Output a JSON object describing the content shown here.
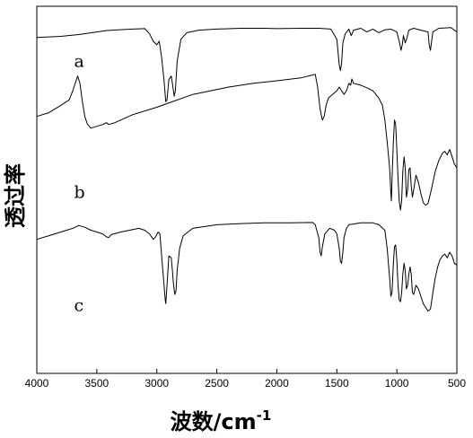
{
  "chart_data": {
    "type": "line",
    "title": "",
    "xlabel": "波数/cm",
    "xlabel_superscript": "-1",
    "ylabel": "透过率",
    "xlim": [
      4000,
      500
    ],
    "x_reversed": true,
    "y_ticks_shown": false,
    "grid": false,
    "x_ticks": [
      4000,
      3500,
      3000,
      2500,
      2000,
      1500,
      1000,
      500
    ],
    "x_tick_labels": [
      "4000",
      "3500",
      "3000",
      "2500",
      "2000",
      "1500",
      "1000",
      "500"
    ],
    "series_labels": [
      "a",
      "b",
      "c"
    ],
    "series": [
      {
        "name": "a",
        "points": [
          [
            4000,
            0.915
          ],
          [
            3800,
            0.918
          ],
          [
            3650,
            0.923
          ],
          [
            3500,
            0.93
          ],
          [
            3420,
            0.934
          ],
          [
            3200,
            0.938
          ],
          [
            3100,
            0.939
          ],
          [
            3060,
            0.925
          ],
          [
            3030,
            0.905
          ],
          [
            3000,
            0.895
          ],
          [
            2980,
            0.905
          ],
          [
            2960,
            0.86
          ],
          [
            2940,
            0.8
          ],
          [
            2925,
            0.74
          ],
          [
            2915,
            0.745
          ],
          [
            2900,
            0.8
          ],
          [
            2880,
            0.81
          ],
          [
            2870,
            0.79
          ],
          [
            2855,
            0.755
          ],
          [
            2845,
            0.77
          ],
          [
            2830,
            0.85
          ],
          [
            2800,
            0.91
          ],
          [
            2750,
            0.928
          ],
          [
            2650,
            0.935
          ],
          [
            2500,
            0.938
          ],
          [
            2300,
            0.94
          ],
          [
            2100,
            0.94
          ],
          [
            2000,
            0.939
          ],
          [
            1800,
            0.94
          ],
          [
            1650,
            0.94
          ],
          [
            1550,
            0.938
          ],
          [
            1500,
            0.91
          ],
          [
            1480,
            0.84
          ],
          [
            1470,
            0.825
          ],
          [
            1460,
            0.845
          ],
          [
            1450,
            0.9
          ],
          [
            1430,
            0.925
          ],
          [
            1400,
            0.938
          ],
          [
            1380,
            0.92
          ],
          [
            1360,
            0.935
          ],
          [
            1300,
            0.94
          ],
          [
            1250,
            0.93
          ],
          [
            1200,
            0.938
          ],
          [
            1150,
            0.928
          ],
          [
            1100,
            0.936
          ],
          [
            1050,
            0.938
          ],
          [
            1000,
            0.93
          ],
          [
            980,
            0.905
          ],
          [
            965,
            0.88
          ],
          [
            955,
            0.895
          ],
          [
            945,
            0.92
          ],
          [
            930,
            0.9
          ],
          [
            915,
            0.915
          ],
          [
            900,
            0.935
          ],
          [
            860,
            0.94
          ],
          [
            800,
            0.935
          ],
          [
            740,
            0.93
          ],
          [
            730,
            0.895
          ],
          [
            720,
            0.88
          ],
          [
            710,
            0.905
          ],
          [
            700,
            0.93
          ],
          [
            650,
            0.94
          ],
          [
            550,
            0.942
          ],
          [
            500,
            0.93
          ]
        ]
      },
      {
        "name": "b",
        "points": [
          [
            4000,
            0.7
          ],
          [
            3900,
            0.71
          ],
          [
            3800,
            0.73
          ],
          [
            3730,
            0.745
          ],
          [
            3700,
            0.77
          ],
          [
            3660,
            0.81
          ],
          [
            3640,
            0.79
          ],
          [
            3620,
            0.74
          ],
          [
            3600,
            0.7
          ],
          [
            3580,
            0.68
          ],
          [
            3550,
            0.668
          ],
          [
            3500,
            0.673
          ],
          [
            3450,
            0.678
          ],
          [
            3420,
            0.683
          ],
          [
            3400,
            0.678
          ],
          [
            3350,
            0.683
          ],
          [
            3200,
            0.705
          ],
          [
            3000,
            0.725
          ],
          [
            2700,
            0.76
          ],
          [
            2400,
            0.78
          ],
          [
            2200,
            0.79
          ],
          [
            2000,
            0.797
          ],
          [
            1800,
            0.805
          ],
          [
            1700,
            0.813
          ],
          [
            1680,
            0.815
          ],
          [
            1660,
            0.78
          ],
          [
            1640,
            0.72
          ],
          [
            1620,
            0.69
          ],
          [
            1605,
            0.7
          ],
          [
            1590,
            0.73
          ],
          [
            1570,
            0.75
          ],
          [
            1500,
            0.77
          ],
          [
            1480,
            0.78
          ],
          [
            1460,
            0.77
          ],
          [
            1440,
            0.76
          ],
          [
            1420,
            0.77
          ],
          [
            1400,
            0.79
          ],
          [
            1385,
            0.785
          ],
          [
            1375,
            0.802
          ],
          [
            1360,
            0.79
          ],
          [
            1300,
            0.785
          ],
          [
            1250,
            0.778
          ],
          [
            1200,
            0.77
          ],
          [
            1150,
            0.75
          ],
          [
            1120,
            0.73
          ],
          [
            1100,
            0.69
          ],
          [
            1080,
            0.63
          ],
          [
            1060,
            0.56
          ],
          [
            1050,
            0.49
          ],
          [
            1045,
            0.47
          ],
          [
            1040,
            0.53
          ],
          [
            1030,
            0.62
          ],
          [
            1020,
            0.69
          ],
          [
            1010,
            0.68
          ],
          [
            1000,
            0.61
          ],
          [
            990,
            0.53
          ],
          [
            980,
            0.47
          ],
          [
            970,
            0.445
          ],
          [
            960,
            0.47
          ],
          [
            950,
            0.55
          ],
          [
            940,
            0.59
          ],
          [
            930,
            0.56
          ],
          [
            920,
            0.48
          ],
          [
            910,
            0.5
          ],
          [
            900,
            0.555
          ],
          [
            890,
            0.56
          ],
          [
            880,
            0.51
          ],
          [
            870,
            0.48
          ],
          [
            860,
            0.5
          ],
          [
            840,
            0.54
          ],
          [
            820,
            0.52
          ],
          [
            800,
            0.49
          ],
          [
            780,
            0.465
          ],
          [
            760,
            0.458
          ],
          [
            740,
            0.463
          ],
          [
            720,
            0.49
          ],
          [
            700,
            0.52
          ],
          [
            680,
            0.55
          ],
          [
            650,
            0.58
          ],
          [
            620,
            0.6
          ],
          [
            600,
            0.605
          ],
          [
            580,
            0.595
          ],
          [
            560,
            0.61
          ],
          [
            540,
            0.59
          ],
          [
            520,
            0.57
          ],
          [
            500,
            0.56
          ]
        ]
      },
      {
        "name": "c",
        "points": [
          [
            4000,
            0.365
          ],
          [
            3900,
            0.375
          ],
          [
            3800,
            0.385
          ],
          [
            3700,
            0.395
          ],
          [
            3650,
            0.403
          ],
          [
            3600,
            0.398
          ],
          [
            3550,
            0.39
          ],
          [
            3500,
            0.385
          ],
          [
            3450,
            0.38
          ],
          [
            3420,
            0.372
          ],
          [
            3400,
            0.37
          ],
          [
            3380,
            0.378
          ],
          [
            3300,
            0.385
          ],
          [
            3200,
            0.392
          ],
          [
            3150,
            0.395
          ],
          [
            3100,
            0.39
          ],
          [
            3060,
            0.38
          ],
          [
            3030,
            0.365
          ],
          [
            3010,
            0.372
          ],
          [
            2990,
            0.385
          ],
          [
            2975,
            0.38
          ],
          [
            2960,
            0.32
          ],
          [
            2945,
            0.26
          ],
          [
            2930,
            0.2
          ],
          [
            2925,
            0.19
          ],
          [
            2915,
            0.24
          ],
          [
            2900,
            0.32
          ],
          [
            2880,
            0.315
          ],
          [
            2870,
            0.28
          ],
          [
            2860,
            0.24
          ],
          [
            2850,
            0.215
          ],
          [
            2840,
            0.225
          ],
          [
            2830,
            0.28
          ],
          [
            2810,
            0.34
          ],
          [
            2780,
            0.375
          ],
          [
            2700,
            0.395
          ],
          [
            2500,
            0.405
          ],
          [
            2300,
            0.408
          ],
          [
            2100,
            0.41
          ],
          [
            1900,
            0.41
          ],
          [
            1700,
            0.411
          ],
          [
            1680,
            0.405
          ],
          [
            1650,
            0.37
          ],
          [
            1640,
            0.33
          ],
          [
            1630,
            0.32
          ],
          [
            1620,
            0.345
          ],
          [
            1600,
            0.38
          ],
          [
            1560,
            0.395
          ],
          [
            1540,
            0.393
          ],
          [
            1520,
            0.39
          ],
          [
            1500,
            0.38
          ],
          [
            1480,
            0.34
          ],
          [
            1470,
            0.305
          ],
          [
            1460,
            0.3
          ],
          [
            1450,
            0.33
          ],
          [
            1440,
            0.37
          ],
          [
            1420,
            0.395
          ],
          [
            1400,
            0.405
          ],
          [
            1300,
            0.41
          ],
          [
            1200,
            0.41
          ],
          [
            1150,
            0.405
          ],
          [
            1100,
            0.39
          ],
          [
            1080,
            0.34
          ],
          [
            1060,
            0.26
          ],
          [
            1050,
            0.21
          ],
          [
            1040,
            0.22
          ],
          [
            1030,
            0.29
          ],
          [
            1020,
            0.345
          ],
          [
            1010,
            0.35
          ],
          [
            1000,
            0.31
          ],
          [
            990,
            0.24
          ],
          [
            980,
            0.2
          ],
          [
            970,
            0.195
          ],
          [
            960,
            0.22
          ],
          [
            950,
            0.27
          ],
          [
            940,
            0.3
          ],
          [
            930,
            0.28
          ],
          [
            920,
            0.23
          ],
          [
            910,
            0.24
          ],
          [
            900,
            0.27
          ],
          [
            890,
            0.29
          ],
          [
            880,
            0.27
          ],
          [
            870,
            0.22
          ],
          [
            860,
            0.215
          ],
          [
            840,
            0.24
          ],
          [
            820,
            0.23
          ],
          [
            800,
            0.21
          ],
          [
            780,
            0.19
          ],
          [
            760,
            0.18
          ],
          [
            740,
            0.17
          ],
          [
            720,
            0.175
          ],
          [
            700,
            0.22
          ],
          [
            680,
            0.26
          ],
          [
            660,
            0.29
          ],
          [
            640,
            0.31
          ],
          [
            620,
            0.32
          ],
          [
            600,
            0.325
          ],
          [
            580,
            0.315
          ],
          [
            560,
            0.33
          ],
          [
            540,
            0.32
          ],
          [
            520,
            0.3
          ],
          [
            500,
            0.295
          ]
        ]
      }
    ]
  }
}
